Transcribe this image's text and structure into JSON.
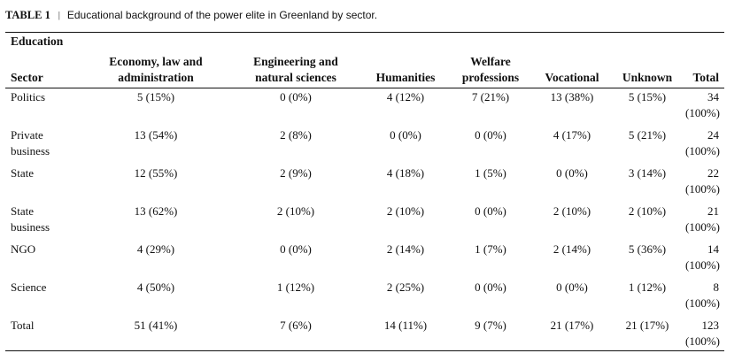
{
  "caption": {
    "label": "TABLE 1",
    "separator": "|",
    "title": "Educational background of the power elite in Greenland by sector."
  },
  "group_header": "Education",
  "columns": {
    "sector": "Sector",
    "economy": [
      "Economy, law and",
      "administration"
    ],
    "engineering": [
      "Engineering and",
      "natural sciences"
    ],
    "humanities": "Humanities",
    "welfare": [
      "Welfare",
      "professions"
    ],
    "vocational": "Vocational",
    "unknown": "Unknown",
    "total": "Total"
  },
  "rows": [
    {
      "sector": [
        "Politics"
      ],
      "economy": "5 (15%)",
      "engineering": "0 (0%)",
      "humanities": "4 (12%)",
      "welfare": "7 (21%)",
      "vocational": "13 (38%)",
      "unknown": "5 (15%)",
      "total": [
        "34",
        "(100%)"
      ]
    },
    {
      "sector": [
        "Private",
        "business"
      ],
      "economy": "13 (54%)",
      "engineering": "2 (8%)",
      "humanities": "0 (0%)",
      "welfare": "0 (0%)",
      "vocational": "4 (17%)",
      "unknown": "5 (21%)",
      "total": [
        "24",
        "(100%)"
      ]
    },
    {
      "sector": [
        "State"
      ],
      "economy": "12 (55%)",
      "engineering": "2 (9%)",
      "humanities": "4 (18%)",
      "welfare": "1 (5%)",
      "vocational": "0 (0%)",
      "unknown": "3 (14%)",
      "total": [
        "22",
        "(100%)"
      ]
    },
    {
      "sector": [
        "State",
        "business"
      ],
      "economy": "13 (62%)",
      "engineering": "2 (10%)",
      "humanities": "2 (10%)",
      "welfare": "0 (0%)",
      "vocational": "2 (10%)",
      "unknown": "2 (10%)",
      "total": [
        "21",
        "(100%)"
      ]
    },
    {
      "sector": [
        "NGO"
      ],
      "economy": "4 (29%)",
      "engineering": "0 (0%)",
      "humanities": "2 (14%)",
      "welfare": "1 (7%)",
      "vocational": "2 (14%)",
      "unknown": "5 (36%)",
      "total": [
        "14",
        "(100%)"
      ]
    },
    {
      "sector": [
        "Science"
      ],
      "economy": "4 (50%)",
      "engineering": "1 (12%)",
      "humanities": "2 (25%)",
      "welfare": "0 (0%)",
      "vocational": "0 (0%)",
      "unknown": "1 (12%)",
      "total": [
        "8",
        "(100%)"
      ]
    },
    {
      "sector": [
        "Total"
      ],
      "economy": "51 (41%)",
      "engineering": "7 (6%)",
      "humanities": "14 (11%)",
      "welfare": "9 (7%)",
      "vocational": "21 (17%)",
      "unknown": "21 (17%)",
      "total": [
        "123",
        "(100%)"
      ]
    }
  ]
}
